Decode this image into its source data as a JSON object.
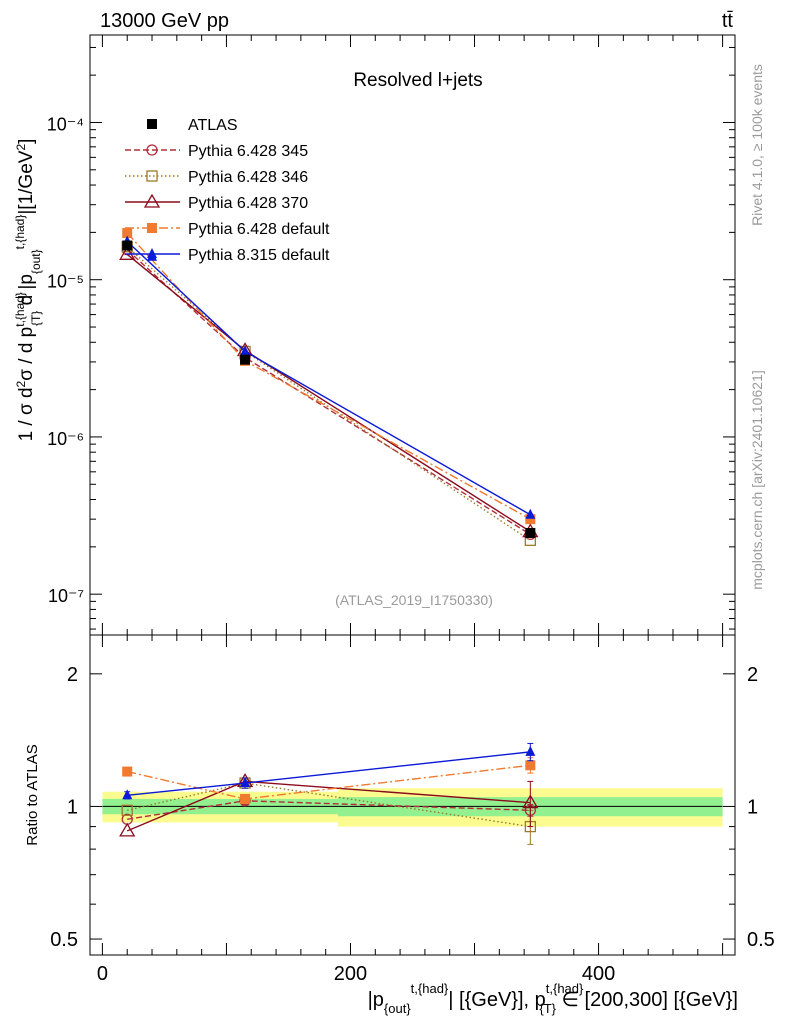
{
  "header": {
    "left": "13000 GeV pp",
    "right": "tt̄"
  },
  "side_labels": {
    "rivet": "Rivet 4.1.0, ≥ 100k events",
    "source": "mcplots.cern.ch [arXiv:2401.10621]"
  },
  "chart_data": [
    {
      "type": "line",
      "title": "Resolved l+jets",
      "watermark": "(ATLAS_2019_I1750330)",
      "ylabel": "1 / σ d²σ / d p_T^{t,had} d |p_out^{t,had}| [1/GeV²]",
      "yscale": "log",
      "xlim": [
        -10,
        510
      ],
      "ylim": [
        5.5e-08,
        0.00036
      ],
      "y_ticks": [
        {
          "value": 1e-07,
          "label": "10⁻⁷"
        },
        {
          "value": 1e-06,
          "label": "10⁻⁶"
        },
        {
          "value": 1e-05,
          "label": "10⁻⁵"
        },
        {
          "value": 0.0001,
          "label": "10⁻⁴"
        }
      ],
      "legend_position": "top-left",
      "x": [
        20,
        115,
        345
      ],
      "series": [
        {
          "name": "ATLAS",
          "color": "#000000",
          "marker": "square-filled",
          "dash": "none",
          "values": [
            1.65e-05,
            3.1e-06,
            2.45e-07
          ],
          "errors": [
            0.0,
            0.0,
            0.0
          ]
        },
        {
          "name": "Pythia 6.428 345",
          "color": "#b22e3c",
          "marker": "circle-open",
          "dash": "6,3",
          "values": [
            1.55e-05,
            3.2e-06,
            2.4e-07
          ],
          "errors": [
            0.0,
            0.0,
            0.0
          ]
        },
        {
          "name": "Pythia 6.428 346",
          "color": "#9c7a2a",
          "marker": "square-open",
          "dash": "1.5,2.5",
          "values": [
            1.62e-05,
            3.5e-06,
            2.2e-07
          ],
          "errors": [
            0.0,
            0.0,
            0.0
          ]
        },
        {
          "name": "Pythia 6.428 370",
          "color": "#8b0b1c",
          "marker": "triangle-open",
          "dash": "none",
          "values": [
            1.45e-05,
            3.55e-06,
            2.5e-07
          ],
          "errors": [
            0.0,
            0.0,
            0.0
          ]
        },
        {
          "name": "Pythia 6.428 default",
          "color": "#f07a2e",
          "marker": "square-filled",
          "dash": "9,3,2,3",
          "values": [
            1.98e-05,
            3.05e-06,
            3e-07
          ],
          "errors": [
            0.0,
            0.0,
            0.0
          ]
        },
        {
          "name": "Pythia 8.315 default",
          "color": "#0b1ad6",
          "marker": "triangle-filled",
          "dash": "none",
          "values": [
            1.75e-05,
            3.5e-06,
            3.2e-07
          ],
          "errors": [
            0.0,
            0.0,
            0.0
          ]
        }
      ],
      "extra_points": [
        {
          "series": "Pythia 8.315 default",
          "x": 40,
          "y": 1.4e-05
        }
      ]
    },
    {
      "type": "line",
      "ylabel": "Ratio to ATLAS",
      "xlabel": "|p_out^{t,had}| [{GeV}], p_T^{t,had} ∈ [200,300] [{GeV}]",
      "yscale": "log",
      "xlim": [
        -10,
        510
      ],
      "ylim": [
        0.46,
        2.45
      ],
      "y_ticks": [
        {
          "value": 0.5,
          "label": "0.5"
        },
        {
          "value": 1,
          "label": "1"
        },
        {
          "value": 2,
          "label": "2"
        }
      ],
      "x_ticks": [
        {
          "value": 0,
          "label": "0"
        },
        {
          "value": 200,
          "label": "200"
        },
        {
          "value": 400,
          "label": "400"
        }
      ],
      "bands": [
        {
          "x0": 0,
          "x1": 190,
          "yellow": [
            0.92,
            1.08
          ],
          "green": [
            0.96,
            1.04
          ]
        },
        {
          "x0": 190,
          "x1": 500,
          "yellow": [
            0.9,
            1.1
          ],
          "green": [
            0.95,
            1.05
          ]
        }
      ],
      "x": [
        20,
        115,
        345
      ],
      "series": [
        {
          "name": "Pythia 6.428 345",
          "values": [
            0.935,
            1.03,
            0.98
          ],
          "errors": [
            0.0,
            0.02,
            0.03
          ]
        },
        {
          "name": "Pythia 6.428 346",
          "values": [
            0.98,
            1.13,
            0.9
          ],
          "errors": [
            0.0,
            0.02,
            0.08
          ]
        },
        {
          "name": "Pythia 6.428 370",
          "values": [
            0.88,
            1.14,
            1.02
          ],
          "errors": [
            0.0,
            0.02,
            0.12
          ]
        },
        {
          "name": "Pythia 6.428 default",
          "values": [
            1.2,
            1.04,
            1.24
          ],
          "errors": [
            0.02,
            0.02,
            0.05
          ]
        },
        {
          "name": "Pythia 8.315 default",
          "values": [
            1.06,
            1.13,
            1.33
          ],
          "errors": [
            0.02,
            0.03,
            0.06
          ]
        }
      ]
    }
  ]
}
